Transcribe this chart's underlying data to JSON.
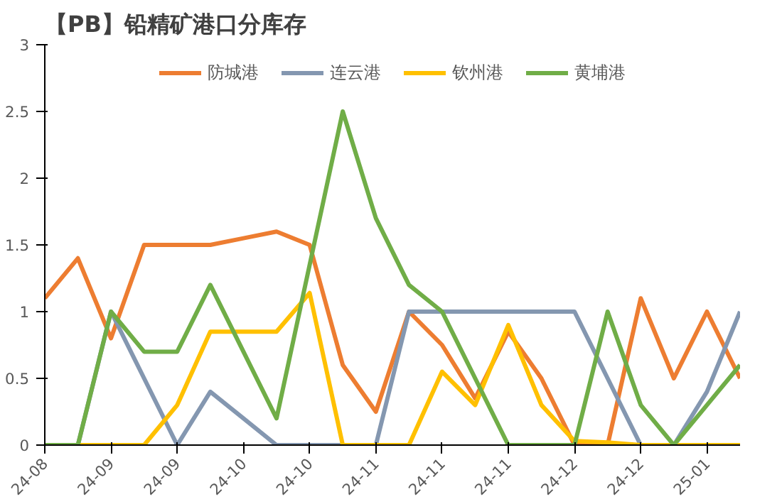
{
  "chart_data": {
    "type": "line",
    "title": "【PB】铅精矿港口分库存",
    "categories": [
      "24-08",
      null,
      "24-09",
      null,
      "24-09",
      null,
      "24-10",
      null,
      "24-10",
      null,
      "24-11",
      null,
      "24-11",
      null,
      "24-11",
      null,
      "24-12",
      null,
      "24-12",
      null,
      "25-01",
      null
    ],
    "series": [
      {
        "name": "防城港",
        "color": "#ed7d31",
        "values": [
          1.1,
          1.4,
          0.8,
          1.5,
          1.5,
          1.5,
          1.55,
          1.6,
          1.5,
          0.6,
          0.25,
          1.0,
          0.75,
          0.35,
          0.85,
          0.5,
          0,
          0,
          1.1,
          0.5,
          1.0,
          0.5
        ]
      },
      {
        "name": "连云港",
        "color": "#8497b0",
        "values": [
          0,
          0,
          1.0,
          0.5,
          0,
          0.4,
          0.2,
          0,
          0,
          0,
          0,
          1.0,
          1.0,
          1.0,
          1.0,
          1.0,
          1.0,
          0.5,
          0,
          0,
          0.4,
          1.0
        ]
      },
      {
        "name": "钦州港",
        "color": "#ffc000",
        "values": [
          0,
          0,
          0,
          0,
          0.3,
          0.85,
          0.85,
          0.85,
          1.14,
          0,
          0,
          0,
          0.55,
          0.3,
          0.9,
          0.3,
          0.03,
          0.02,
          0,
          0,
          0,
          0
        ]
      },
      {
        "name": "黄埔港",
        "color": "#70ad47",
        "values": [
          0,
          0,
          1.0,
          0.7,
          0.7,
          1.2,
          0.7,
          0.2,
          1.35,
          2.5,
          1.7,
          1.2,
          1.0,
          0.5,
          0,
          0,
          0,
          1.0,
          0.3,
          0,
          0.3,
          0.6
        ]
      }
    ],
    "ylim": [
      0,
      3
    ],
    "yticks": [
      0,
      0.5,
      1,
      1.5,
      2,
      2.5,
      3
    ],
    "grid": false,
    "legend": "top",
    "marker": "none",
    "line_style": "solid"
  }
}
